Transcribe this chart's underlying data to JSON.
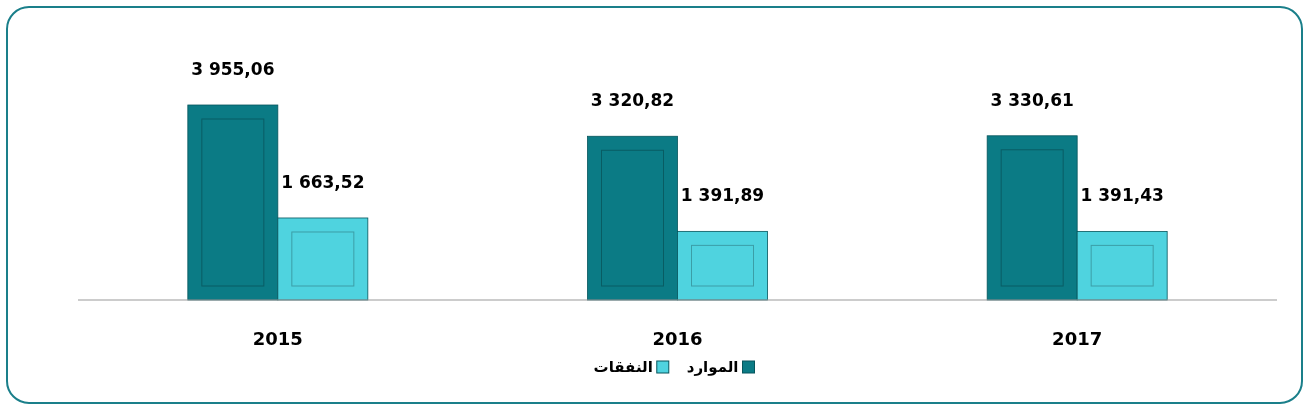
{
  "chart_data": {
    "type": "bar",
    "categories": [
      "2015",
      "2016",
      "2017"
    ],
    "series": [
      {
        "name": "الموارد",
        "color": "#0b7b85",
        "values": [
          3955.06,
          3320.82,
          3330.61
        ],
        "value_labels": [
          "3 955,06",
          "3 320,82",
          "3 330,61"
        ]
      },
      {
        "name": "النفقات",
        "color": "#4fd3df",
        "values": [
          1663.52,
          1391.89,
          1391.43
        ],
        "value_labels": [
          "1 663,52",
          "1 391,89",
          "1 391,43"
        ]
      }
    ],
    "legend": "bottom"
  }
}
